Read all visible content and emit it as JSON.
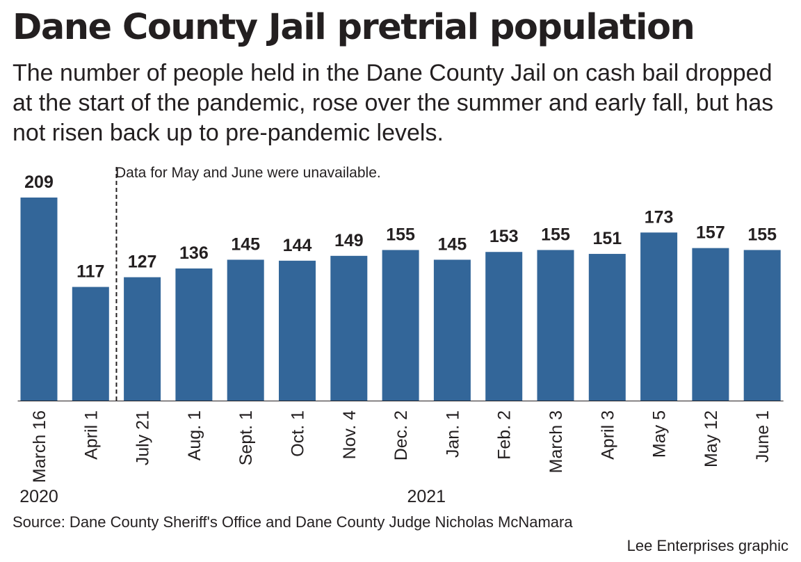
{
  "title": "Dane County Jail pretrial population",
  "subtitle": "The number of people held in the Dane County Jail on cash bail dropped at the start of the pandemic, rose over the summer and early fall, but has not risen back up to pre-pandemic levels.",
  "note": "Data for May and June were unavailable.",
  "source": "Source: Dane County Sheriff's Office and Dane County Judge Nicholas McNamara",
  "credit": "Lee Enterprises graphic",
  "colors": {
    "bar": "#336699",
    "text": "#231f20"
  },
  "chart_data": {
    "type": "bar",
    "categories": [
      "March 16",
      "April 1",
      "July 21",
      "Aug. 1",
      "Sept. 1",
      "Oct. 1",
      "Nov. 4",
      "Dec. 2",
      "Jan. 1",
      "Feb. 2",
      "March 3",
      "April 3",
      "May 5",
      "May 12",
      "June 1"
    ],
    "values": [
      209,
      117,
      127,
      136,
      145,
      144,
      149,
      155,
      145,
      153,
      155,
      151,
      173,
      157,
      155
    ],
    "year_groups": [
      {
        "label": "2020",
        "start": 0,
        "end": 0
      },
      {
        "label": "2021",
        "start": 1,
        "end": 14
      }
    ],
    "ylim": [
      0,
      209
    ],
    "gap_after_index": 1,
    "grid": false,
    "data_labels": true
  }
}
